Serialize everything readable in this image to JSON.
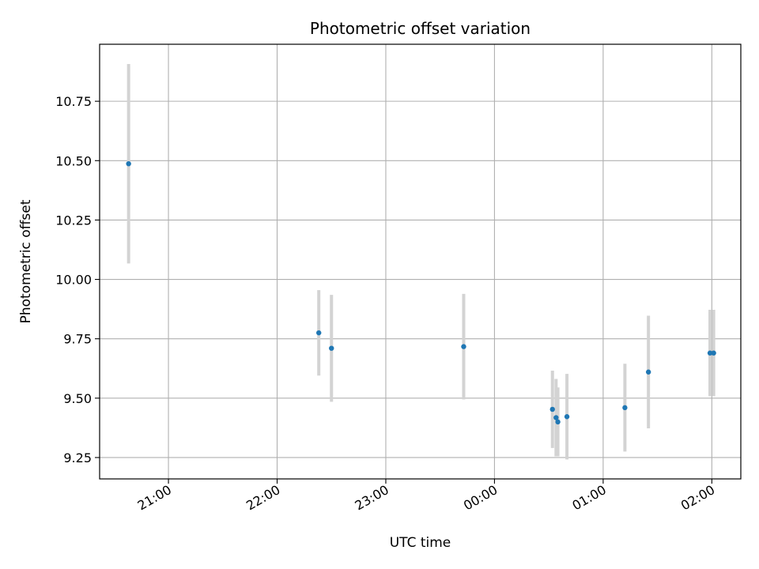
{
  "chart_data": {
    "type": "scatter",
    "title": "Photometric offset variation",
    "xlabel": "UTC time",
    "ylabel": "Photometric offset",
    "x_is_time": true,
    "x_ticks": [
      "21:00",
      "22:00",
      "23:00",
      "00:00",
      "01:00",
      "02:00"
    ],
    "y_ticks": [
      "9.25",
      "9.50",
      "9.75",
      "10.00",
      "10.25",
      "10.50",
      "10.75"
    ],
    "ylim": [
      9.16,
      10.99
    ],
    "xlim": [
      "20:22",
      "02:16"
    ],
    "grid": true,
    "colors": {
      "point": "#1f77b4",
      "errorbar": "#d3d3d3",
      "grid": "#b0b0b0"
    },
    "points": [
      {
        "x": "20:38",
        "y": 10.487,
        "yerr": 0.42
      },
      {
        "x": "22:23",
        "y": 9.775,
        "yerr": 0.18
      },
      {
        "x": "22:30",
        "y": 9.71,
        "yerr": 0.225
      },
      {
        "x": "23:43",
        "y": 9.717,
        "yerr": 0.222
      },
      {
        "x": "00:32",
        "y": 9.453,
        "yerr": 0.163
      },
      {
        "x": "00:34",
        "y": 9.418,
        "yerr": 0.163
      },
      {
        "x": "00:35",
        "y": 9.4,
        "yerr": 0.145
      },
      {
        "x": "00:40",
        "y": 9.422,
        "yerr": 0.18
      },
      {
        "x": "01:12",
        "y": 9.46,
        "yerr": 0.185
      },
      {
        "x": "01:25",
        "y": 9.61,
        "yerr": 0.237
      },
      {
        "x": "01:59",
        "y": 9.69,
        "yerr": 0.182
      },
      {
        "x": "02:01",
        "y": 9.69,
        "yerr": 0.182
      }
    ]
  }
}
